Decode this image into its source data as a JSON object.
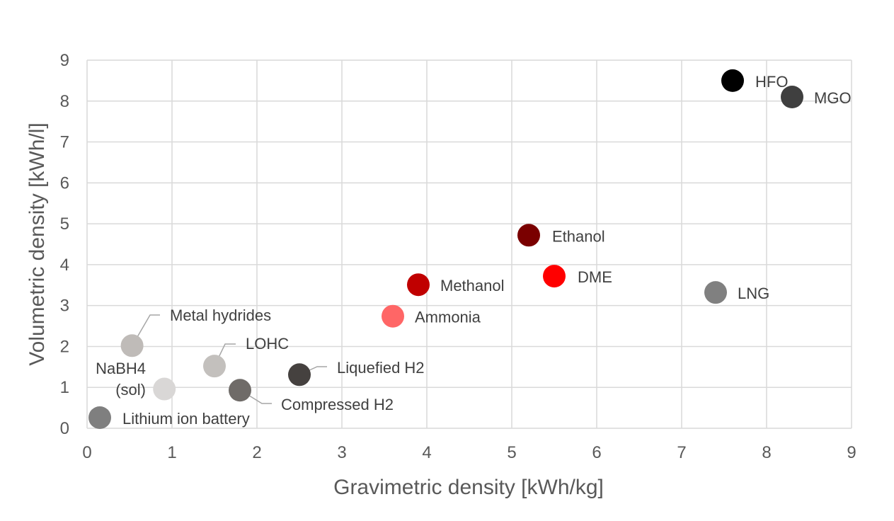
{
  "chart_data": {
    "type": "scatter",
    "title": "",
    "xlabel": "Gravimetric density [kWh/kg]",
    "ylabel": "Volumetric density [kWh/l]",
    "xlim": [
      0,
      9
    ],
    "ylim": [
      0,
      9
    ],
    "xticks": [
      "0",
      "1",
      "2",
      "3",
      "4",
      "5",
      "6",
      "7",
      "8",
      "9"
    ],
    "yticks": [
      "0",
      "1",
      "2",
      "3",
      "4",
      "5",
      "6",
      "7",
      "8",
      "9"
    ],
    "grid": true,
    "legend": "none",
    "points": [
      {
        "label": "HFO",
        "x": 7.6,
        "y": 8.5,
        "color": "#000000"
      },
      {
        "label": "MGO",
        "x": 8.3,
        "y": 8.1,
        "color": "#3f3f3f"
      },
      {
        "label": "Ethanol",
        "x": 5.2,
        "y": 4.72,
        "color": "#7a0000"
      },
      {
        "label": "DME",
        "x": 5.5,
        "y": 3.72,
        "color": "#ff0000"
      },
      {
        "label": "LNG",
        "x": 7.4,
        "y": 3.32,
        "color": "#808080"
      },
      {
        "label": "Methanol",
        "x": 3.9,
        "y": 3.51,
        "color": "#c00000"
      },
      {
        "label": "Ammonia",
        "x": 3.6,
        "y": 2.74,
        "color": "#ff6666"
      },
      {
        "label": "Metal hydrides",
        "x": 0.53,
        "y": 2.02,
        "color": "#bfbbb8"
      },
      {
        "label": "LOHC",
        "x": 1.5,
        "y": 1.52,
        "color": "#c3c0bd"
      },
      {
        "label": "NaBH4",
        "label2": "(sol)",
        "x": 0.91,
        "y": 0.96,
        "color": "#d9d7d6"
      },
      {
        "label": "Compressed H2",
        "x": 1.8,
        "y": 0.93,
        "color": "#6f6b68"
      },
      {
        "label": "Liquefied H2",
        "x": 2.5,
        "y": 1.31,
        "color": "#45413f"
      },
      {
        "label": "Lithium ion battery",
        "x": 0.15,
        "y": 0.26,
        "color": "#7f7f7f"
      }
    ]
  }
}
